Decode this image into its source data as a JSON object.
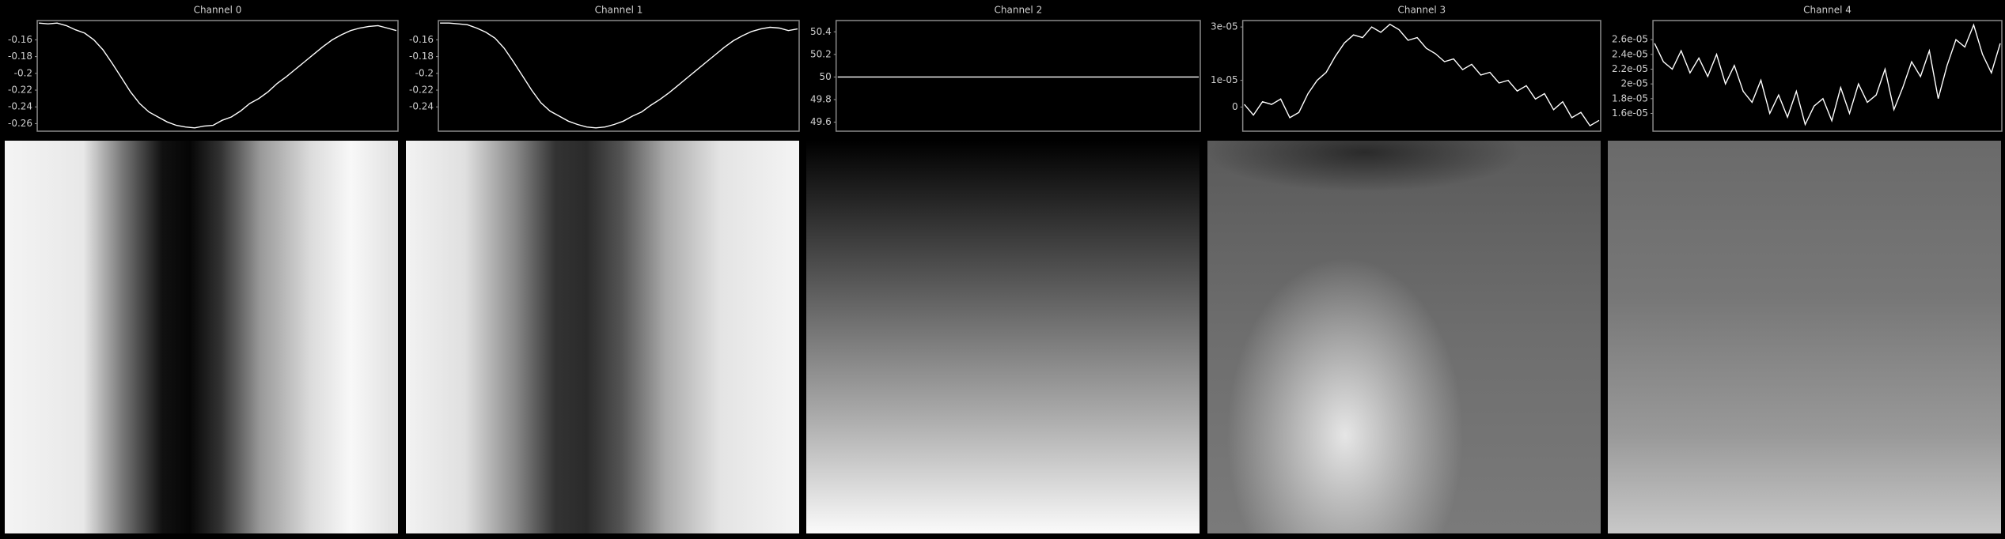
{
  "chart_data": [
    {
      "type": "line",
      "title": "Channel 0",
      "color": "#ffffff",
      "values": [
        -0.14,
        -0.141,
        -0.14,
        -0.143,
        -0.148,
        -0.152,
        -0.16,
        -0.172,
        -0.188,
        -0.205,
        -0.222,
        -0.236,
        -0.246,
        -0.252,
        -0.258,
        -0.262,
        -0.264,
        -0.265,
        -0.263,
        -0.262,
        -0.256,
        -0.252,
        -0.245,
        -0.236,
        -0.23,
        -0.222,
        -0.212,
        -0.204,
        -0.195,
        -0.186,
        -0.177,
        -0.168,
        -0.16,
        -0.154,
        -0.149,
        -0.146,
        -0.144,
        -0.143,
        -0.146,
        -0.149
      ],
      "ylim": [
        -0.269,
        -0.137
      ],
      "yticks": [
        -0.16,
        -0.18,
        -0.2,
        -0.22,
        -0.24,
        -0.26
      ]
    },
    {
      "type": "line",
      "title": "Channel 1",
      "color": "#ffffff",
      "values": [
        -0.14,
        -0.14,
        -0.141,
        -0.142,
        -0.146,
        -0.151,
        -0.158,
        -0.17,
        -0.186,
        -0.203,
        -0.22,
        -0.235,
        -0.245,
        -0.251,
        -0.257,
        -0.261,
        -0.264,
        -0.265,
        -0.264,
        -0.261,
        -0.257,
        -0.251,
        -0.246,
        -0.238,
        -0.231,
        -0.223,
        -0.214,
        -0.205,
        -0.196,
        -0.187,
        -0.178,
        -0.169,
        -0.161,
        -0.155,
        -0.15,
        -0.147,
        -0.145,
        -0.146,
        -0.149,
        -0.147
      ],
      "ylim": [
        -0.269,
        -0.137
      ],
      "yticks": [
        -0.16,
        -0.18,
        -0.2,
        -0.22,
        -0.24
      ]
    },
    {
      "type": "line",
      "title": "Channel 2",
      "color": "#ffffff",
      "values": [
        50,
        50,
        50,
        50,
        50,
        50,
        50,
        50,
        50,
        50
      ],
      "ylim": [
        49.52,
        50.5
      ],
      "yticks": [
        50.4,
        50.2,
        50,
        49.8,
        49.6
      ]
    },
    {
      "type": "line",
      "title": "Channel 3",
      "color": "#ffffff",
      "values": [
        1e-06,
        -3e-06,
        2e-06,
        1e-06,
        3e-06,
        -4e-06,
        -2e-06,
        5e-06,
        1e-05,
        1.3e-05,
        1.9e-05,
        2.4e-05,
        2.7e-05,
        2.6e-05,
        3e-05,
        2.8e-05,
        3.1e-05,
        2.9e-05,
        2.5e-05,
        2.6e-05,
        2.2e-05,
        2e-05,
        1.7e-05,
        1.8e-05,
        1.4e-05,
        1.6e-05,
        1.2e-05,
        1.3e-05,
        9e-06,
        1e-05,
        6e-06,
        8e-06,
        3e-06,
        5e-06,
        -1e-06,
        2e-06,
        -4e-06,
        -2e-06,
        -7e-06,
        -5e-06
      ],
      "ylim": [
        -9.05e-06,
        3.24e-05
      ],
      "yticks": [
        {
          "value": 3e-05,
          "label": "3e-05"
        },
        {
          "value": 1e-05,
          "label": "1e-05"
        },
        0
      ]
    },
    {
      "type": "line",
      "title": "Channel 4",
      "color": "#ffffff",
      "values": [
        2.55e-05,
        2.3e-05,
        2.2e-05,
        2.45e-05,
        2.15e-05,
        2.35e-05,
        2.1e-05,
        2.4e-05,
        2e-05,
        2.25e-05,
        1.9e-05,
        1.75e-05,
        2.05e-05,
        1.6e-05,
        1.85e-05,
        1.55e-05,
        1.9e-05,
        1.45e-05,
        1.7e-05,
        1.8e-05,
        1.5e-05,
        1.95e-05,
        1.6e-05,
        2e-05,
        1.75e-05,
        1.85e-05,
        2.2e-05,
        1.65e-05,
        1.95e-05,
        2.3e-05,
        2.1e-05,
        2.45e-05,
        1.8e-05,
        2.25e-05,
        2.6e-05,
        2.5e-05,
        2.8e-05,
        2.4e-05,
        2.15e-05,
        2.55e-05
      ],
      "ylim": [
        1.359e-05,
        2.859e-05
      ],
      "yticks": [
        {
          "value": 2.6e-05,
          "label": "2.6e-05"
        },
        {
          "value": 2.4e-05,
          "label": "2.4e-05"
        },
        {
          "value": 2.2e-05,
          "label": "2.2e-05"
        },
        {
          "value": 2e-05,
          "label": "2e-05"
        },
        {
          "value": 1.8e-05,
          "label": "1.8e-05"
        },
        {
          "value": 1.6e-05,
          "label": "1.6e-05"
        }
      ]
    }
  ]
}
